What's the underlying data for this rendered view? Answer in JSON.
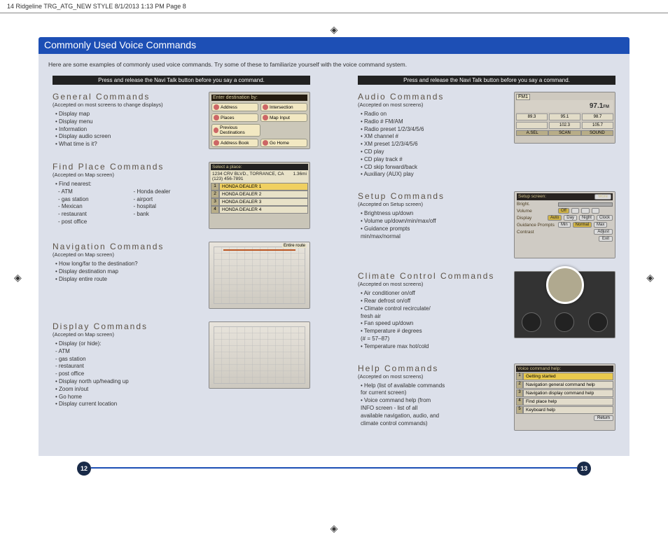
{
  "print_header": "14 Ridgeline TRG_ATG_NEW STYLE  8/1/2013  1:13 PM  Page 8",
  "title": "Commonly Used Voice Commands",
  "intro": "Here are some examples of commonly used voice commands. Try some of these to familiarize yourself with the voice command system.",
  "instruction": "Press and release the Navi Talk button before you say a command.",
  "page_left": "12",
  "page_right": "13",
  "colors": {
    "accent": "#1d4fb5",
    "page_num_bg": "#192a48",
    "panel": "#dce0ea",
    "heading": "#5c5246"
  },
  "left_sections": [
    {
      "title": "General Commands",
      "sub": "(Accepted on most screens to change displays)",
      "items": [
        "Display map",
        "Display menu",
        "Information",
        "Display audio screen",
        "What time is it?"
      ],
      "thumb": "dest"
    },
    {
      "title": "Find Place Commands",
      "sub": "(Accepted on Map screen)",
      "lead": "Find nearest:",
      "cols": [
        [
          "ATM",
          "gas station",
          "Mexican",
          "  restaurant",
          "post office"
        ],
        [
          "Honda dealer",
          "airport",
          "hospital",
          "bank"
        ]
      ],
      "thumb": "place"
    },
    {
      "title": "Navigation Commands",
      "sub": "(Accepted on Map screen)",
      "items": [
        "How long/far to the destination?",
        "Display destination map",
        "Display entire route"
      ],
      "thumb": "map1"
    },
    {
      "title": "Display Commands",
      "sub": "(Accepted on Map screen)",
      "lead": "Display (or hide):",
      "sub_items": [
        "ATM",
        "gas station",
        "restaurant",
        "post office"
      ],
      "items2": [
        "Display north up/heading up",
        "Zoom in/out",
        "Go home",
        "Display current location"
      ],
      "thumb": "map2"
    }
  ],
  "right_sections": [
    {
      "title": "Audio Commands",
      "sub": "(Accepted on most screens)",
      "items": [
        "Radio on",
        "Radio # FM/AM",
        "Radio preset 1/2/3/4/5/6",
        "XM channel #",
        "XM preset 1/2/3/4/5/6",
        "CD play",
        "CD play track #",
        "CD skip forward/back",
        "Auxiliary (AUX) play"
      ],
      "thumb": "audio"
    },
    {
      "title": "Setup Commands",
      "sub": "(Accepted on Setup screen)",
      "items": [
        "Brightness up/down",
        "Volume up/down/min/max/off",
        "Guidance prompts",
        "  min/max/normal"
      ],
      "thumb": "setup"
    },
    {
      "title": "Climate Control Commands",
      "sub": "(Accepted on most screens)",
      "items": [
        "Air conditioner on/off",
        "Rear defrost on/off",
        "Climate control recirculate/",
        "  fresh air",
        "Fan speed up/down",
        "Temperature # degrees",
        "  (# = 57–87)",
        "Temperature max hot/cold"
      ],
      "thumb": "climate"
    },
    {
      "title": "Help Commands",
      "sub": "(Accepted on most screens)",
      "items": [
        "Help (list of available commands",
        "  for current screen)",
        "Voice command help (from",
        "  INFO screen - list of all",
        "  available navigation, audio, and",
        "  climate control commands)"
      ],
      "thumb": "help"
    }
  ],
  "dest_thumb": {
    "head": "Enter destination by:",
    "buttons": [
      [
        "Address",
        "Intersection"
      ],
      [
        "Places",
        "Map Input"
      ],
      [
        "Previous Destinations",
        ""
      ],
      [
        "Address Book",
        "Go Home"
      ]
    ]
  },
  "place_thumb": {
    "head": "Select a place:",
    "addr_l1": "1234 CRV BLVD., TORRANCE, CA",
    "addr_l2": "(123) 456-7891",
    "dist": "1.36mi",
    "rows": [
      "HONDA DEALER 1",
      "HONDA DEALER 2",
      "HONDA DEALER 3",
      "HONDA DEALER 4"
    ]
  },
  "audio_thumb": {
    "band": "FM1",
    "freq": "97.1",
    "unit": "FM",
    "row1": [
      "89.3",
      "95.1",
      "98.7"
    ],
    "row2": [
      "",
      "102.3",
      "105.7"
    ],
    "foot": [
      "A.SEL",
      "SCAN",
      "SOUND"
    ]
  },
  "setup_thumb": {
    "head": "Setup screen:",
    "more": "More",
    "rows": [
      {
        "lbl": "Bright.",
        "ctl": [
          "slider"
        ]
      },
      {
        "lbl": "Volume",
        "opts": [
          "Off",
          "",
          "",
          ""
        ],
        "sel": 0
      },
      {
        "lbl": "Display",
        "opts": [
          "Auto",
          "Day",
          "Night",
          "Clock"
        ],
        "sel": 0
      },
      {
        "lbl": "Guidance Prompts",
        "opts": [
          "Min",
          "Normal",
          "Max"
        ],
        "sel": 1
      },
      {
        "lbl": "Contrast",
        "rbtn": "Adjust"
      },
      {
        "lbl": "",
        "rbtn": "Exit"
      }
    ]
  },
  "help_thumb": {
    "head": "Voice command help:",
    "rows": [
      "Getting started",
      "Navigation general command help",
      "Navigation display command help",
      "Find place help",
      "Keyboard help"
    ],
    "rbtn": "Return"
  },
  "map_label": "Entire route"
}
